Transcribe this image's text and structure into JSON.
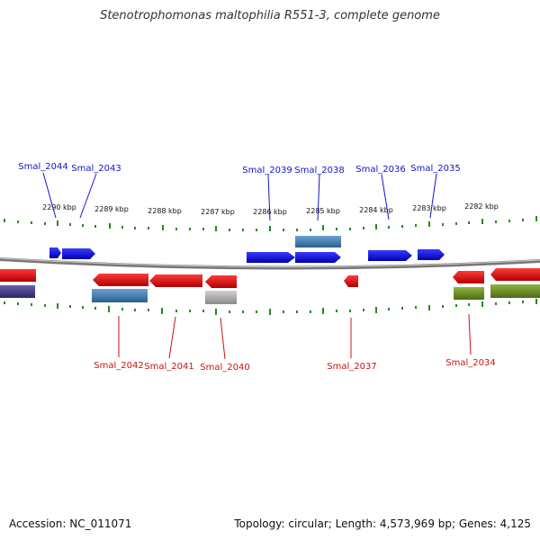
{
  "title": "Stenotrophomonas maltophilia R551-3, complete genome",
  "footer": {
    "accession": "Accession: NC_011071",
    "summary": "Topology: circular; Length: 4,573,969 bp; Genes: 4,125"
  },
  "kbp_labels": [
    "2290 kbp",
    "2289 kbp",
    "2288 kbp",
    "2287 kbp",
    "2286 kbp",
    "2285 kbp",
    "2284 kbp",
    "2283 kbp",
    "2282 kbp"
  ],
  "top_genes": [
    "Smal_2044",
    "Smal_2043",
    "Smal_2039",
    "Smal_2038",
    "Smal_2036",
    "Smal_2035"
  ],
  "bottom_genes": [
    "Smal_2042",
    "Smal_2041",
    "Smal_2040",
    "Smal_2037",
    "Smal_2034"
  ],
  "colors": {
    "forward_gene": "#0000ee",
    "reverse_gene": "#ee0000",
    "cog_blue": "#4682b4",
    "cog_purple": "#483d8b",
    "cog_gray": "#a9a9a9",
    "cog_green": "#6b8e23",
    "tick": "#228b22",
    "backbone": "#777777"
  }
}
